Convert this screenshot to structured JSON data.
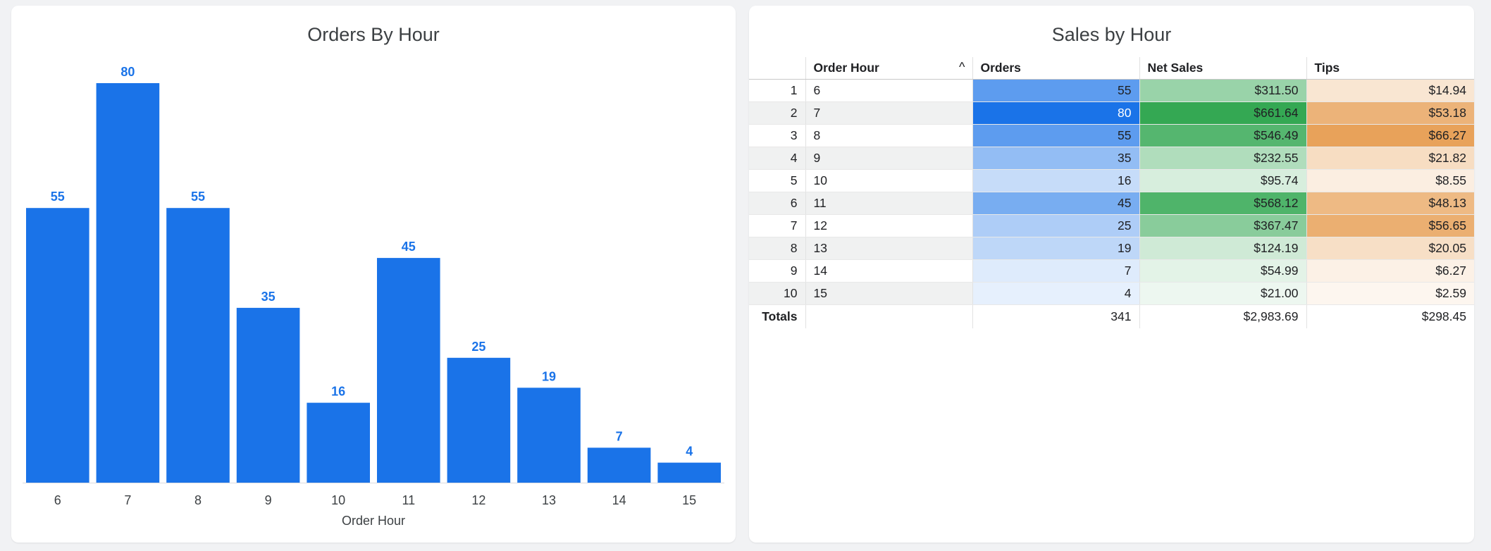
{
  "left_panel": {
    "title": "Orders By Hour"
  },
  "right_panel": {
    "title": "Sales by Hour"
  },
  "chart_data": {
    "type": "bar",
    "title": "Orders By Hour",
    "xlabel": "Order Hour",
    "ylabel": "",
    "categories": [
      "6",
      "7",
      "8",
      "9",
      "10",
      "11",
      "12",
      "13",
      "14",
      "15"
    ],
    "values": [
      55,
      80,
      55,
      35,
      16,
      45,
      25,
      19,
      7,
      4
    ],
    "ylim": [
      0,
      80
    ],
    "data_labels": true,
    "grid": false,
    "bar_color": "#1a73e8"
  },
  "table": {
    "columns": [
      "",
      "Order Hour",
      "Orders",
      "Net Sales",
      "Tips"
    ],
    "sort_indicator": "^",
    "rows": [
      {
        "index": "1",
        "hour": "6",
        "orders": "55",
        "net_sales": "$311.50",
        "tips": "$14.94"
      },
      {
        "index": "2",
        "hour": "7",
        "orders": "80",
        "net_sales": "$661.64",
        "tips": "$53.18"
      },
      {
        "index": "3",
        "hour": "8",
        "orders": "55",
        "net_sales": "$546.49",
        "tips": "$66.27"
      },
      {
        "index": "4",
        "hour": "9",
        "orders": "35",
        "net_sales": "$232.55",
        "tips": "$21.82"
      },
      {
        "index": "5",
        "hour": "10",
        "orders": "16",
        "net_sales": "$95.74",
        "tips": "$8.55"
      },
      {
        "index": "6",
        "hour": "11",
        "orders": "45",
        "net_sales": "$568.12",
        "tips": "$48.13"
      },
      {
        "index": "7",
        "hour": "12",
        "orders": "25",
        "net_sales": "$367.47",
        "tips": "$56.65"
      },
      {
        "index": "8",
        "hour": "13",
        "orders": "19",
        "net_sales": "$124.19",
        "tips": "$20.05"
      },
      {
        "index": "9",
        "hour": "14",
        "orders": "7",
        "net_sales": "$54.99",
        "tips": "$6.27"
      },
      {
        "index": "10",
        "hour": "15",
        "orders": "4",
        "net_sales": "$21.00",
        "tips": "$2.59"
      }
    ],
    "totals": {
      "label": "Totals",
      "hour": "",
      "orders": "341",
      "net_sales": "$2,983.69",
      "tips": "$298.45"
    },
    "heat_colors": {
      "orders": "#1a73e8",
      "net_sales": "#34a853",
      "tips": "#e8a25a"
    }
  }
}
